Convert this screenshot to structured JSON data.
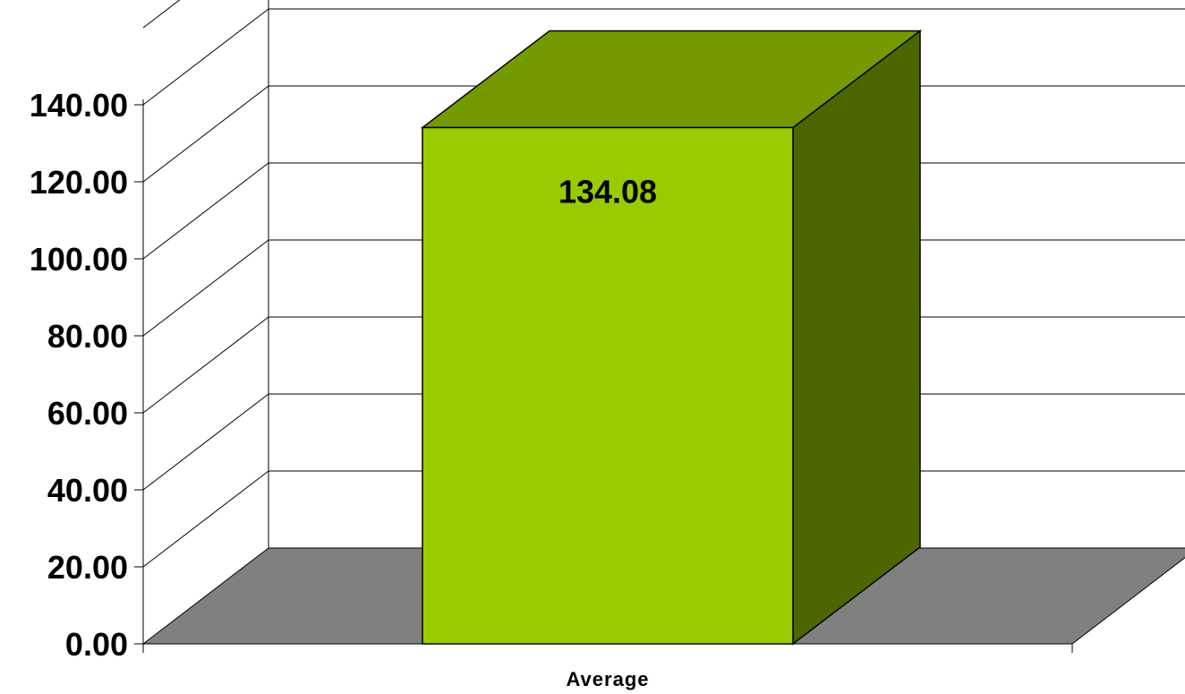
{
  "chart_data": {
    "type": "bar",
    "style": "3d",
    "categories": [
      "Average"
    ],
    "series": [
      {
        "values": [
          134.08
        ]
      }
    ],
    "data_labels": [
      "134.08"
    ],
    "y_ticks": [
      "0.00",
      "20.00",
      "40.00",
      "60.00",
      "80.00",
      "100.00",
      "120.00",
      "140.00"
    ],
    "ylim": [
      0,
      140
    ],
    "grid": true,
    "legend": "none",
    "title": "",
    "xlabel": "",
    "ylabel": ""
  },
  "colors": {
    "bar_front": "#99cc00",
    "bar_top": "#739a00",
    "bar_side": "#4d6600",
    "floor": "#808080",
    "grid": "#000000"
  }
}
